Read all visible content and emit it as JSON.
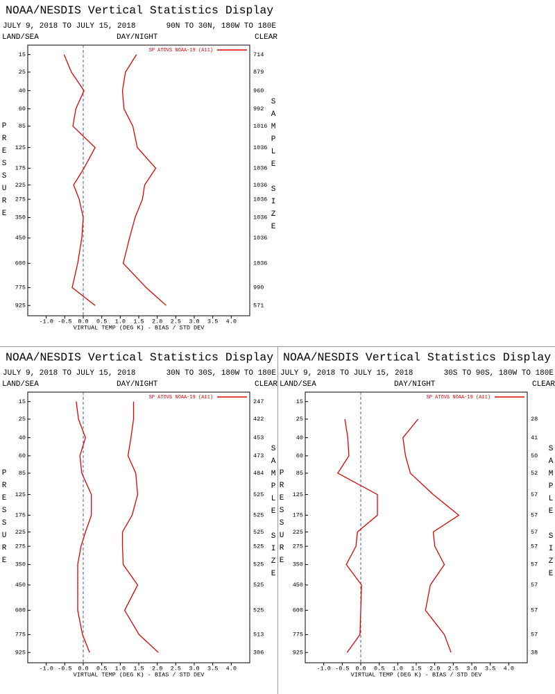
{
  "chart_data": [
    {
      "type": "line",
      "title": "NOAA/NESDIS Vertical Statistics Display",
      "subtitle": "JULY 9, 2018 TO JULY 15, 2018",
      "region": "90N TO 30N, 180W TO 180E",
      "surface": "LAND/SEA",
      "time_of_day": "DAY/NIGHT",
      "sky": "CLEAR",
      "ylabel": "PRESSURE",
      "y2label": "SAMPLE SIZE",
      "xlabel": "VIRTUAL TEMP (DEG K) - BIAS / STD DEV",
      "levels": [
        15,
        25,
        40,
        60,
        85,
        125,
        175,
        225,
        275,
        350,
        450,
        600,
        775,
        925
      ],
      "sample_sizes": [
        714,
        879,
        960,
        992,
        1016,
        1036,
        1036,
        1036,
        1036,
        1036,
        1036,
        1036,
        990,
        571
      ],
      "series": [
        {
          "name": "SP ATOVS NOAA-19 (A11)",
          "color": "#e00000",
          "values": [
            -0.52,
            -0.32,
            0.02,
            -0.2,
            -0.28,
            0.32,
            0.02,
            -0.26,
            -0.11,
            0.0,
            -0.04,
            -0.15,
            -0.3,
            0.32
          ]
        },
        {
          "color": "#e00000",
          "values": [
            1.44,
            1.14,
            1.06,
            1.1,
            1.34,
            1.46,
            1.96,
            1.66,
            1.6,
            1.4,
            1.25,
            1.08,
            1.7,
            2.24
          ]
        }
      ],
      "xlim": [
        -1.5,
        4.5
      ],
      "ylim": [
        11,
        1020
      ],
      "xticks": [
        {
          "value": -1,
          "label": "-1.0"
        },
        -0.5,
        {
          "value": 0,
          "label": "0.0"
        },
        0.5,
        {
          "value": 1,
          "label": "1.0"
        },
        1.5,
        {
          "value": 2,
          "label": "2.0"
        },
        2.5,
        {
          "value": 3,
          "label": "3.0"
        },
        3.5,
        {
          "value": 4,
          "label": "4.0"
        }
      ]
    },
    {
      "type": "line",
      "title": "NOAA/NESDIS Vertical Statistics Display",
      "subtitle": "JULY 9, 2018 TO JULY 15, 2018",
      "region": "30N TO 30S, 180W TO 180E",
      "surface": "LAND/SEA",
      "time_of_day": "DAY/NIGHT",
      "sky": "CLEAR",
      "ylabel": "PRESSURE",
      "y2label": "SAMPLE SIZE",
      "xlabel": "VIRTUAL TEMP (DEG K) - BIAS / STD DEV",
      "levels": [
        15,
        25,
        40,
        60,
        85,
        125,
        175,
        225,
        275,
        350,
        450,
        600,
        775,
        925
      ],
      "sample_sizes": [
        247,
        422,
        453,
        473,
        484,
        525,
        525,
        525,
        525,
        525,
        525,
        525,
        513,
        306
      ],
      "series": [
        {
          "name": "SP ATOVS NOAA-19 (A11)",
          "color": "#e00000",
          "values": [
            -0.19,
            -0.13,
            0.06,
            -0.09,
            -0.04,
            0.22,
            0.22,
            0.06,
            -0.06,
            -0.15,
            -0.15,
            -0.15,
            -0.02,
            0.17
          ]
        },
        {
          "color": "#e00000",
          "values": [
            1.36,
            1.36,
            1.29,
            1.21,
            1.42,
            1.47,
            1.32,
            1.06,
            1.06,
            1.08,
            1.47,
            1.12,
            1.51,
            2.03
          ]
        }
      ],
      "xlim": [
        -1.5,
        4.5
      ],
      "ylim": [
        11,
        1020
      ],
      "xticks": [
        {
          "value": -1,
          "label": "-1.0"
        },
        -0.5,
        {
          "value": 0,
          "label": "0.0"
        },
        0.5,
        {
          "value": 1,
          "label": "1.0"
        },
        1.5,
        {
          "value": 2,
          "label": "2.0"
        },
        2.5,
        {
          "value": 3,
          "label": "3.0"
        },
        3.5,
        {
          "value": 4,
          "label": "4.0"
        }
      ]
    },
    {
      "type": "line",
      "title": "NOAA/NESDIS Vertical Statistics Display",
      "subtitle": "JULY 9, 2018 TO JULY 15, 2018",
      "region": "30S TO 90S, 180W TO 180E",
      "surface": "LAND/SEA",
      "time_of_day": "DAY/NIGHT",
      "sky": "CLEAR",
      "ylabel": "PRESSURE",
      "y2label": "SAMPLE SIZE",
      "xlabel": "VIRTUAL TEMP (DEG K) - BIAS / STD DEV",
      "levels": [
        15,
        25,
        40,
        60,
        85,
        125,
        175,
        225,
        275,
        350,
        450,
        600,
        775,
        925
      ],
      "sample_sizes": [
        null,
        28,
        41,
        50,
        52,
        57,
        57,
        57,
        57,
        57,
        57,
        57,
        57,
        38
      ],
      "series": [
        {
          "name": "SP ATOVS NOAA-19 (A11)",
          "color": "#e00000",
          "values": [
            null,
            -0.43,
            -0.35,
            -0.32,
            -0.62,
            0.45,
            0.45,
            -0.09,
            -0.13,
            -0.39,
            0.02,
            0.0,
            -0.02,
            -0.37
          ]
        },
        {
          "color": "#e00000",
          "values": [
            null,
            1.55,
            1.14,
            1.21,
            1.34,
            1.96,
            2.65,
            1.96,
            2.0,
            2.26,
            1.88,
            1.75,
            2.26,
            2.44
          ]
        }
      ],
      "xlim": [
        -1.5,
        4.5
      ],
      "ylim": [
        11,
        1020
      ],
      "xticks": [
        {
          "value": -1,
          "label": "-1.0"
        },
        -0.5,
        {
          "value": 0,
          "label": "0.0"
        },
        0.5,
        {
          "value": 1,
          "label": "1.0"
        },
        1.5,
        {
          "value": 2,
          "label": "2.0"
        },
        2.5,
        {
          "value": 3,
          "label": "3.0"
        },
        3.5,
        {
          "value": 4,
          "label": "4.0"
        }
      ]
    }
  ]
}
